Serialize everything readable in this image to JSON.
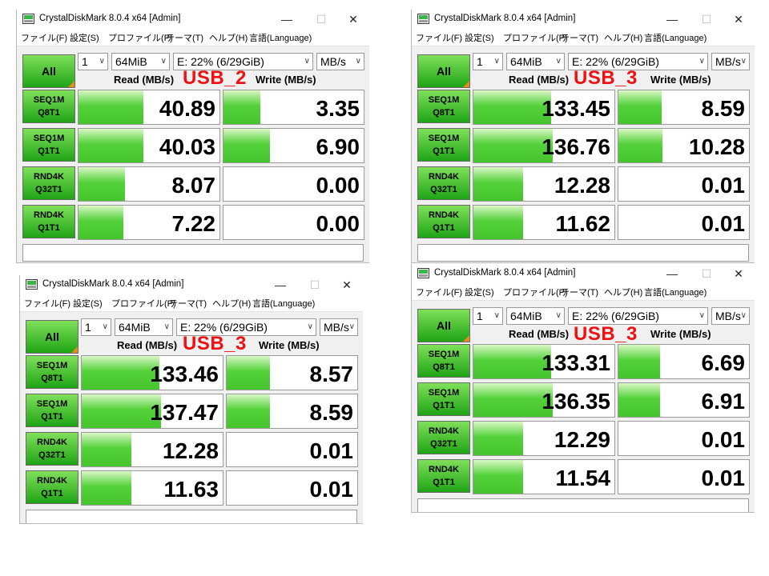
{
  "title": "CrystalDiskMark 8.0.4 x64 [Admin]",
  "window_buttons": {
    "minimize": "—",
    "maximize": "☐",
    "close": "✕"
  },
  "menu": [
    "ファイル(F)",
    "設定(S)",
    "プロファイル(P)",
    "テーマ(T)",
    "ヘルプ(H)",
    "言語(Language)"
  ],
  "all_label": "All",
  "selects": {
    "count": "1",
    "size": "64MiB",
    "drive": "E: 22% (6/29GiB)",
    "unit": "MB/s"
  },
  "read_header": "Read (MB/s)",
  "write_header": "Write (MB/s)",
  "tests": [
    {
      "line1": "SEQ1M",
      "line2": "Q8T1"
    },
    {
      "line1": "SEQ1M",
      "line2": "Q1T1"
    },
    {
      "line1": "RND4K",
      "line2": "Q32T1"
    },
    {
      "line1": "RND4K",
      "line2": "Q1T1"
    }
  ],
  "colors": {
    "usb_label": "#ee1111",
    "bar_green": "#46c42d",
    "all_corner": "#e88a1f"
  },
  "windows": [
    {
      "usb_label": "USB_2",
      "read": [
        "40.89",
        "40.03",
        "8.07",
        "7.22"
      ],
      "write": [
        "3.35",
        "6.90",
        "0.00",
        "0.00"
      ],
      "read_fill": [
        0.46,
        0.46,
        0.33,
        0.32
      ],
      "write_fill": [
        0.26,
        0.33,
        0.0,
        0.0
      ]
    },
    {
      "usb_label": "USB_3",
      "read": [
        "133.45",
        "136.76",
        "12.28",
        "11.62"
      ],
      "write": [
        "8.59",
        "10.28",
        "0.01",
        "0.01"
      ],
      "read_fill": [
        0.55,
        0.56,
        0.35,
        0.35
      ],
      "write_fill": [
        0.33,
        0.34,
        0.0,
        0.0
      ]
    },
    {
      "usb_label": "USB_3",
      "read": [
        "133.46",
        "137.47",
        "12.28",
        "11.63"
      ],
      "write": [
        "8.57",
        "8.59",
        "0.01",
        "0.01"
      ],
      "read_fill": [
        0.55,
        0.56,
        0.35,
        0.35
      ],
      "write_fill": [
        0.33,
        0.33,
        0.0,
        0.0
      ]
    },
    {
      "usb_label": "USB_3",
      "read": [
        "133.31",
        "136.35",
        "12.29",
        "11.54"
      ],
      "write": [
        "6.69",
        "6.91",
        "0.01",
        "0.01"
      ],
      "read_fill": [
        0.55,
        0.56,
        0.35,
        0.35
      ],
      "write_fill": [
        0.32,
        0.32,
        0.0,
        0.0
      ]
    }
  ]
}
